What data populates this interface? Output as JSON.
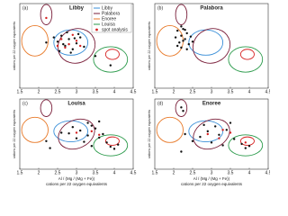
{
  "labels": {
    "x": "Al / (Mg / (Mg + Fe))",
    "x2": "cations per 22 oxygen equivalents",
    "y": "cations per 22 oxygen equivalents"
  },
  "legend": [
    {
      "name": "Libby",
      "color": "#3a8fd8"
    },
    {
      "name": "Palabora",
      "color": "#7a1f3a"
    },
    {
      "name": "Enoree",
      "color": "#e87a2a"
    },
    {
      "name": "Louisa",
      "color": "#2a9a4a"
    },
    {
      "name": "spot analysis",
      "color": "#d62020"
    }
  ],
  "fields": [
    {
      "color": "#7a1f3a",
      "center": [
        2.2,
        8.7
      ],
      "radii": [
        0.15,
        1.2
      ],
      "angle": 0
    },
    {
      "color": "#e87a2a",
      "center": [
        1.9,
        5.6
      ],
      "radii": [
        0.35,
        1.8
      ],
      "angle": 0
    },
    {
      "color": "#3a8fd8",
      "center": [
        2.85,
        5.4
      ],
      "radii": [
        0.45,
        1.5
      ],
      "angle": 0
    },
    {
      "color": "#7a1f3a",
      "center": [
        3.0,
        5.0
      ],
      "radii": [
        0.5,
        2.0
      ],
      "angle": 25
    },
    {
      "color": "#2a9a4a",
      "center": [
        3.9,
        3.4
      ],
      "radii": [
        0.45,
        1.5
      ],
      "angle": 0
    },
    {
      "color": "#d62020",
      "center": [
        3.95,
        4.0
      ],
      "radii": [
        0.18,
        0.6
      ],
      "angle": 0
    }
  ],
  "chart_data": [
    {
      "type": "scatter",
      "label": "(a)",
      "title": "Libby",
      "xlim": [
        1.5,
        4.5
      ],
      "ylim": [
        0,
        10
      ],
      "xticks": [
        1.5,
        2.0,
        2.5,
        3.0,
        3.5,
        4.0,
        4.5
      ],
      "series": [
        {
          "color": "#111111",
          "x": [
            2.5,
            2.6,
            2.7,
            2.8,
            2.9,
            3.0,
            3.1,
            2.55,
            2.75,
            2.95,
            3.2,
            2.65,
            2.85,
            3.05,
            2.4,
            3.5,
            3.9,
            2.2
          ],
          "y": [
            5.5,
            6.2,
            5.0,
            5.8,
            4.6,
            5.3,
            6.0,
            4.4,
            6.6,
            5.9,
            4.9,
            5.2,
            4.2,
            6.4,
            6.0,
            3.8,
            2.7,
            5.4
          ]
        },
        {
          "name": "spot analysis",
          "color": "#d62020",
          "x": [
            2.6,
            2.8,
            3.0,
            2.7,
            2.9,
            3.1,
            2.5,
            2.2
          ],
          "y": [
            5.8,
            5.2,
            5.6,
            4.8,
            6.3,
            5.0,
            5.0,
            8.3
          ]
        }
      ]
    },
    {
      "type": "scatter",
      "label": "(b)",
      "title": "Palabora",
      "xlim": [
        1.5,
        4.5
      ],
      "ylim": [
        0,
        10
      ],
      "xticks": [
        1.5,
        2.0,
        2.5,
        3.0,
        3.5,
        4.0,
        4.5
      ],
      "series": [
        {
          "color": "#111111",
          "x": [
            2.1,
            2.2,
            2.3,
            2.15,
            2.25,
            2.35,
            2.4,
            2.05,
            2.2,
            2.3,
            2.45,
            2.1,
            2.25,
            2.35,
            2.5,
            2.2
          ],
          "y": [
            6.8,
            6.2,
            5.8,
            5.4,
            7.0,
            6.5,
            5.2,
            6.0,
            4.8,
            6.9,
            6.1,
            5.0,
            5.6,
            4.6,
            5.5,
            7.3
          ]
        },
        {
          "color": "#d62020",
          "x": [],
          "y": []
        }
      ]
    },
    {
      "type": "scatter",
      "label": "(c)",
      "title": "Louisa",
      "xlim": [
        1.5,
        4.5
      ],
      "ylim": [
        0,
        10
      ],
      "xticks": [
        1.5,
        2.0,
        2.5,
        3.0,
        3.5,
        4.0,
        4.5
      ],
      "series": [
        {
          "color": "#111111",
          "x": [
            2.2,
            2.6,
            2.9,
            3.1,
            3.3,
            3.4,
            3.5,
            3.6,
            3.2,
            3.0,
            3.8,
            3.9,
            4.0,
            4.1,
            3.7,
            3.4,
            2.8,
            3.3,
            3.6,
            2.3
          ],
          "y": [
            4.0,
            5.2,
            6.0,
            5.5,
            4.8,
            6.2,
            5.8,
            4.5,
            3.9,
            4.4,
            3.8,
            3.2,
            2.9,
            3.5,
            5.0,
            3.3,
            5.1,
            6.6,
            6.8,
            3.0
          ]
        },
        {
          "color": "#d62020",
          "x": [
            3.0,
            3.4,
            3.6
          ],
          "y": [
            5.2,
            5.4,
            4.9
          ]
        }
      ]
    },
    {
      "type": "scatter",
      "label": "(d)",
      "title": "Enoree",
      "xlim": [
        1.5,
        4.5
      ],
      "ylim": [
        0,
        10
      ],
      "xticks": [
        1.5,
        2.0,
        2.5,
        3.0,
        3.5,
        4.0,
        4.5
      ],
      "series": [
        {
          "color": "#111111",
          "x": [
            2.2,
            2.25,
            2.3,
            2.5,
            2.7,
            2.9,
            3.0,
            3.1,
            3.2,
            3.3,
            3.4,
            3.6,
            3.8,
            3.9,
            4.0,
            2.8,
            3.5,
            2.2
          ],
          "y": [
            8.8,
            8.3,
            5.0,
            4.0,
            4.6,
            5.4,
            3.8,
            6.1,
            4.9,
            3.4,
            5.6,
            4.3,
            3.6,
            3.0,
            3.3,
            6.3,
            6.6,
            2.5
          ]
        },
        {
          "color": "#d62020",
          "x": [
            3.3,
            3.5,
            3.2,
            3.9,
            2.9
          ],
          "y": [
            5.6,
            5.2,
            4.4,
            3.8,
            5.0
          ]
        }
      ]
    }
  ]
}
